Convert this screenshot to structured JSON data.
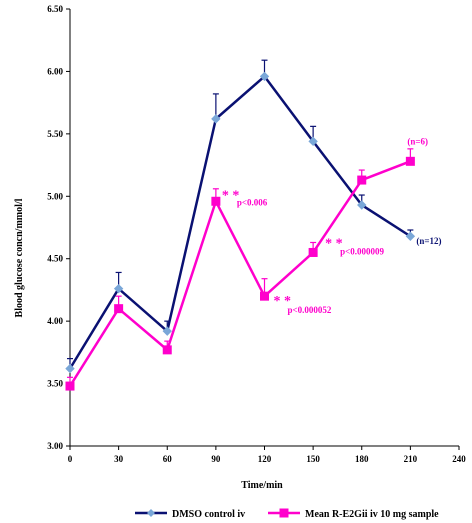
{
  "chart_data": {
    "type": "line",
    "xlabel": "Time/min",
    "ylabel": "Blood glucose concn/mmol/l",
    "xlim": [
      0,
      240
    ],
    "ylim": [
      3.0,
      6.5
    ],
    "x_ticks": [
      "0",
      "30",
      "60",
      "90",
      "120",
      "150",
      "180",
      "210",
      "240"
    ],
    "y_ticks": [
      "3.00",
      "3.50",
      "4.00",
      "4.50",
      "5.00",
      "5.50",
      "6.00",
      "6.50"
    ],
    "grid": false,
    "legend_position": "bottom",
    "series": [
      {
        "name": "DMSO control iv",
        "color": "#0a1172",
        "marker": "diamond",
        "marker_color": "#7aa7d8",
        "x": [
          0,
          30,
          60,
          90,
          120,
          150,
          180,
          210
        ],
        "values": [
          3.62,
          4.26,
          3.92,
          5.62,
          5.96,
          5.44,
          4.93,
          4.68
        ],
        "error": [
          0.08,
          0.13,
          0.08,
          0.2,
          0.13,
          0.12,
          0.08,
          0.05
        ]
      },
      {
        "name": "Mean R-E2Gii iv 10 mg sample",
        "color": "#ff00cc",
        "marker": "square",
        "marker_color": "#ff00cc",
        "x": [
          0,
          30,
          60,
          90,
          120,
          150,
          180,
          210
        ],
        "values": [
          3.48,
          4.1,
          3.77,
          4.96,
          4.2,
          4.55,
          5.13,
          5.28
        ],
        "error": [
          0.07,
          0.1,
          0.07,
          0.1,
          0.14,
          0.08,
          0.08,
          0.1
        ]
      }
    ],
    "annotations": [
      {
        "id": "stars_90",
        "text": "* *",
        "x": 90,
        "y": 4.96,
        "color": "#ff00cc"
      },
      {
        "id": "p_90",
        "text": "p<0.006",
        "x": 90,
        "y": 4.96,
        "color": "#ff00cc"
      },
      {
        "id": "stars_120",
        "text": "* *",
        "x": 120,
        "y": 4.2,
        "color": "#ff00cc"
      },
      {
        "id": "p_120",
        "text": "p<0.000052",
        "x": 120,
        "y": 4.2,
        "color": "#ff00cc"
      },
      {
        "id": "stars_150",
        "text": "* *",
        "x": 150,
        "y": 4.55,
        "color": "#ff00cc"
      },
      {
        "id": "p_150",
        "text": "p<0.000009",
        "x": 150,
        "y": 4.55,
        "color": "#ff00cc"
      },
      {
        "id": "n_pink",
        "text": "(n=6)",
        "x": 210,
        "y": 5.28,
        "color": "#ff00cc"
      },
      {
        "id": "n_blue",
        "text": "(n=12)",
        "x": 210,
        "y": 4.68,
        "color": "#0a1172"
      }
    ]
  }
}
